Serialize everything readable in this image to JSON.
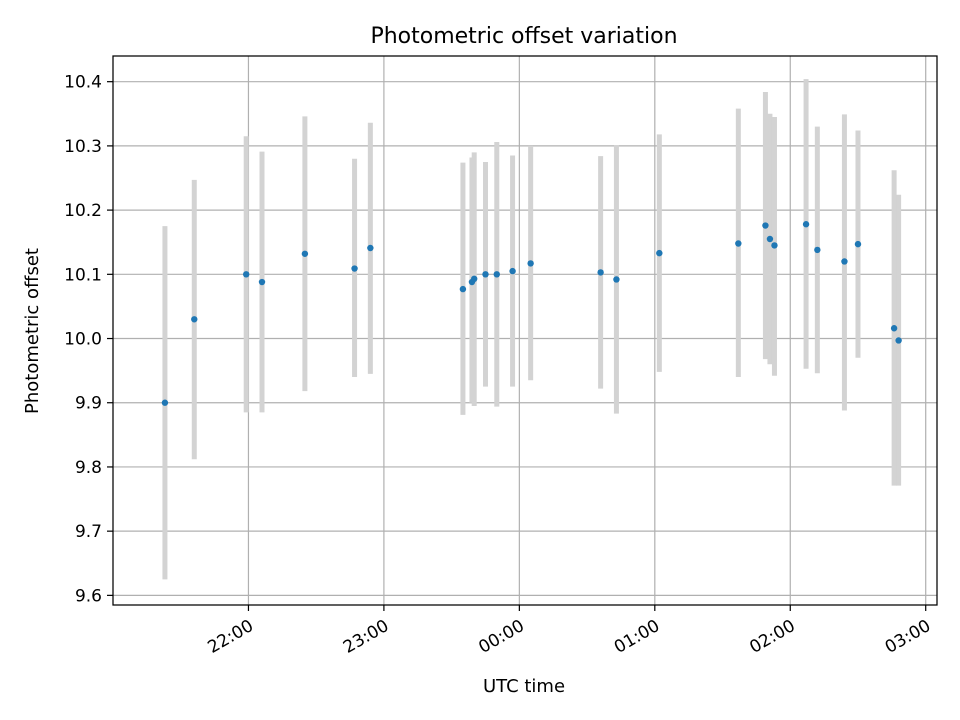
{
  "chart_data": {
    "type": "scatter",
    "title": "Photometric offset variation",
    "xlabel": "UTC time",
    "ylabel": "Photometric offset",
    "ylim": [
      9.585,
      10.44
    ],
    "xlim": [
      "21:00",
      "03:05"
    ],
    "grid": true,
    "x_ticks": [
      "22:00",
      "23:00",
      "00:00",
      "01:00",
      "02:00",
      "03:00"
    ],
    "y_ticks": [
      9.6,
      9.7,
      9.8,
      9.9,
      10.0,
      10.1,
      10.2,
      10.3,
      10.4
    ],
    "y_tick_labels": [
      "9.6",
      "9.7",
      "9.8",
      "9.9",
      "10.0",
      "10.1",
      "10.2",
      "10.3",
      "10.4"
    ],
    "colors": {
      "point": "#1f77b4",
      "errorbar": "#d3d3d3",
      "grid": "#b0b0b0"
    },
    "points": [
      {
        "t": "21:23",
        "y": 9.9,
        "lo": 9.625,
        "hi": 10.175
      },
      {
        "t": "21:36",
        "y": 10.03,
        "lo": 9.812,
        "hi": 10.247
      },
      {
        "t": "21:59",
        "y": 10.1,
        "lo": 9.885,
        "hi": 10.315
      },
      {
        "t": "22:06",
        "y": 10.088,
        "lo": 9.885,
        "hi": 10.291
      },
      {
        "t": "22:25",
        "y": 10.132,
        "lo": 9.918,
        "hi": 10.346
      },
      {
        "t": "22:47",
        "y": 10.109,
        "lo": 9.94,
        "hi": 10.28
      },
      {
        "t": "22:54",
        "y": 10.141,
        "lo": 9.945,
        "hi": 10.336
      },
      {
        "t": "23:35",
        "y": 10.077,
        "lo": 9.881,
        "hi": 10.274
      },
      {
        "t": "23:39",
        "y": 10.088,
        "lo": 9.9,
        "hi": 10.282
      },
      {
        "t": "23:40",
        "y": 10.093,
        "lo": 9.895,
        "hi": 10.29
      },
      {
        "t": "23:45",
        "y": 10.1,
        "lo": 9.925,
        "hi": 10.275
      },
      {
        "t": "23:50",
        "y": 10.1,
        "lo": 9.894,
        "hi": 10.306
      },
      {
        "t": "23:57",
        "y": 10.105,
        "lo": 9.925,
        "hi": 10.285
      },
      {
        "t": "00:05",
        "y": 10.117,
        "lo": 9.935,
        "hi": 10.3
      },
      {
        "t": "00:36",
        "y": 10.103,
        "lo": 9.922,
        "hi": 10.284
      },
      {
        "t": "00:43",
        "y": 10.092,
        "lo": 9.883,
        "hi": 10.301
      },
      {
        "t": "01:02",
        "y": 10.133,
        "lo": 9.948,
        "hi": 10.318
      },
      {
        "t": "01:37",
        "y": 10.148,
        "lo": 9.94,
        "hi": 10.358
      },
      {
        "t": "01:49",
        "y": 10.176,
        "lo": 9.968,
        "hi": 10.384
      },
      {
        "t": "01:51",
        "y": 10.155,
        "lo": 9.96,
        "hi": 10.35
      },
      {
        "t": "01:53",
        "y": 10.145,
        "lo": 9.942,
        "hi": 10.345
      },
      {
        "t": "02:07",
        "y": 10.178,
        "lo": 9.953,
        "hi": 10.404
      },
      {
        "t": "02:12",
        "y": 10.138,
        "lo": 9.946,
        "hi": 10.33
      },
      {
        "t": "02:24",
        "y": 10.12,
        "lo": 9.888,
        "hi": 10.349
      },
      {
        "t": "02:30",
        "y": 10.147,
        "lo": 9.97,
        "hi": 10.324
      },
      {
        "t": "02:46",
        "y": 10.016,
        "lo": 9.771,
        "hi": 10.262
      },
      {
        "t": "02:48",
        "y": 9.997,
        "lo": 9.771,
        "hi": 10.224
      }
    ]
  }
}
